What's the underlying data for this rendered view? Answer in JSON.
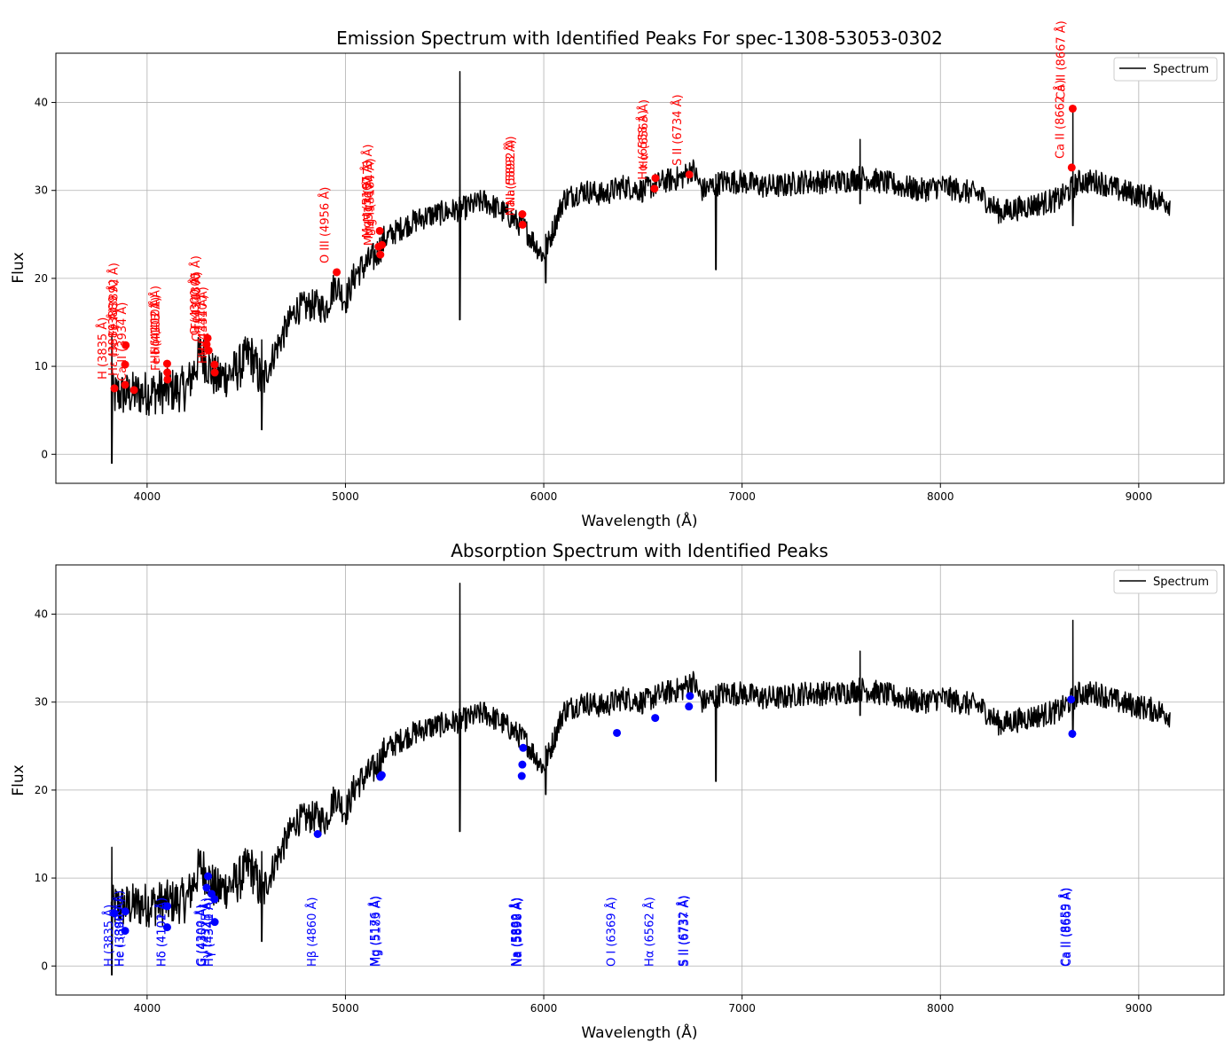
{
  "chart_data": [
    {
      "type": "line",
      "title": "Emission Spectrum with Identified Peaks For spec-1308-53053-0302",
      "xlabel": "Wavelength (Å)",
      "ylabel": "Flux",
      "xlim": [
        3540,
        9430
      ],
      "ylim": [
        -3.3,
        45.6
      ],
      "xticks": [
        4000,
        5000,
        6000,
        7000,
        8000,
        9000
      ],
      "yticks": [
        0,
        10,
        20,
        30,
        40
      ],
      "grid": true,
      "legend": {
        "position": "top-right",
        "label": "Spectrum"
      },
      "colors": {
        "line": "#000000",
        "markers": "#ff0000"
      },
      "spectrum_anchors": [
        [
          3820,
          6.5
        ],
        [
          3850,
          6.8
        ],
        [
          3900,
          6.8
        ],
        [
          4000,
          7.0
        ],
        [
          4100,
          7.2
        ],
        [
          4200,
          7.5
        ],
        [
          4270,
          11.5
        ],
        [
          4350,
          8.5
        ],
        [
          4450,
          9.5
        ],
        [
          4520,
          11.5
        ],
        [
          4580,
          8.0
        ],
        [
          4650,
          12.0
        ],
        [
          4750,
          16.5
        ],
        [
          4850,
          17.0
        ],
        [
          4900,
          16.5
        ],
        [
          4950,
          19.5
        ],
        [
          5000,
          17.5
        ],
        [
          5050,
          20.5
        ],
        [
          5150,
          22.5
        ],
        [
          5200,
          24.5
        ],
        [
          5300,
          26.0
        ],
        [
          5400,
          27.0
        ],
        [
          5500,
          27.5
        ],
        [
          5600,
          28.0
        ],
        [
          5700,
          28.8
        ],
        [
          5800,
          27.5
        ],
        [
          5900,
          25.8
        ],
        [
          6000,
          22.5
        ],
        [
          6100,
          29.0
        ],
        [
          6200,
          30.0
        ],
        [
          6300,
          29.5
        ],
        [
          6400,
          30.5
        ],
        [
          6500,
          30.0
        ],
        [
          6600,
          31.0
        ],
        [
          6700,
          31.5
        ],
        [
          6750,
          32.5
        ],
        [
          6800,
          30.0
        ],
        [
          6900,
          31.0
        ],
        [
          7000,
          31.0
        ],
        [
          7100,
          30.5
        ],
        [
          7200,
          30.5
        ],
        [
          7300,
          31.0
        ],
        [
          7400,
          31.0
        ],
        [
          7500,
          31.0
        ],
        [
          7600,
          31.5
        ],
        [
          7700,
          31.0
        ],
        [
          7800,
          30.5
        ],
        [
          7900,
          30.0
        ],
        [
          8000,
          30.5
        ],
        [
          8100,
          30.0
        ],
        [
          8200,
          29.5
        ],
        [
          8300,
          27.5
        ],
        [
          8400,
          28.0
        ],
        [
          8500,
          28.5
        ],
        [
          8600,
          29.0
        ],
        [
          8700,
          31.0
        ],
        [
          8800,
          31.0
        ],
        [
          8900,
          30.0
        ],
        [
          9000,
          29.5
        ],
        [
          9100,
          29.0
        ],
        [
          9160,
          28.5
        ]
      ],
      "spectrum_features": [
        {
          "x": 5577,
          "peak": 43.5,
          "dip": 15.3
        },
        {
          "x": 6010,
          "peak": 25.0,
          "dip": 19.5
        },
        {
          "x": 6868,
          "peak": 27.0,
          "dip": 21.0
        },
        {
          "x": 3822,
          "peak": 13.5,
          "dip": -1.0
        },
        {
          "x": 4578,
          "peak": 13.0,
          "dip": 2.8
        },
        {
          "x": 7595,
          "peak": 35.8,
          "dip": 28.5
        },
        {
          "x": 8668,
          "peak": 39.3,
          "dip": 26.0
        }
      ],
      "points": [
        {
          "x": 3835,
          "y": 7.5,
          "label": "H (3835 Å)"
        },
        {
          "x": 3889,
          "y": 10.2,
          "label": "He I (3889 Å)"
        },
        {
          "x": 3889,
          "y": 7.9,
          "label": "Hε (3889 Å)"
        },
        {
          "x": 3934,
          "y": 7.3,
          "label": "Ca II (3934 Å)"
        },
        {
          "x": 3892,
          "y": 12.4,
          "label": "Fe I (3892 Å)"
        },
        {
          "x": 4101,
          "y": 10.3,
          "label": "Hδ (4101 Å)"
        },
        {
          "x": 4103,
          "y": 8.5,
          "label": "Fe I (4103 Å)"
        },
        {
          "x": 4102,
          "y": 9.3,
          "label": "Hδ (4102 Å)"
        },
        {
          "x": 4300,
          "y": 12.5,
          "label": "G (4300 Å)"
        },
        {
          "x": 4305,
          "y": 13.2,
          "label": "Fe I (4305 Å)"
        },
        {
          "x": 4310,
          "y": 11.8,
          "label": "CH (4310 Å)"
        },
        {
          "x": 4340,
          "y": 10.2,
          "label": "Hγ (4340 Å)"
        },
        {
          "x": 4341,
          "y": 9.3,
          "label": "Hγ (4341 Å)"
        },
        {
          "x": 4956,
          "y": 20.7,
          "label": "O III (4956 Å)"
        },
        {
          "x": 5167,
          "y": 23.6,
          "label": "Mg I (5167 Å)"
        },
        {
          "x": 5173,
          "y": 25.4,
          "label": "Mg I (5173 Å)"
        },
        {
          "x": 5176,
          "y": 22.7,
          "label": "Mg (5176 Å)"
        },
        {
          "x": 5184,
          "y": 23.8,
          "label": "Mg I (5184 Å)"
        },
        {
          "x": 5892,
          "y": 27.3,
          "label": "Na (5892 Å)"
        },
        {
          "x": 5893,
          "y": 26.1,
          "label": "Na I (5893 Å)"
        },
        {
          "x": 6558,
          "y": 30.2,
          "label": "Hα (6558 Å)"
        },
        {
          "x": 6563,
          "y": 31.4,
          "label": "Hα (6563 Å)"
        },
        {
          "x": 6734,
          "y": 31.8,
          "label": "S II (6734 Å)"
        },
        {
          "x": 8662,
          "y": 32.6,
          "label": "Ca II (8662 Å)"
        },
        {
          "x": 8667,
          "y": 39.3,
          "label": "Ca II (8667 Å)"
        }
      ]
    },
    {
      "type": "line",
      "title": "Absorption Spectrum with Identified Peaks",
      "xlabel": "Wavelength (Å)",
      "ylabel": "Flux",
      "xlim": [
        3540,
        9430
      ],
      "ylim": [
        -3.3,
        45.6
      ],
      "xticks": [
        4000,
        5000,
        6000,
        7000,
        8000,
        9000
      ],
      "yticks": [
        0,
        10,
        20,
        30,
        40
      ],
      "grid": true,
      "legend": {
        "position": "top-right",
        "label": "Spectrum"
      },
      "colors": {
        "line": "#000000",
        "markers": "#0000ff"
      },
      "points": [
        {
          "x": 3835,
          "y": 6.0,
          "label": "H (3835 Å)"
        },
        {
          "x": 3889,
          "y": 4.0,
          "label": "He I (3889 Å)"
        },
        {
          "x": 3890,
          "y": 6.2,
          "label": "Hε (3890 Å)"
        },
        {
          "x": 4101,
          "y": 4.4,
          "label": "Hδ (4101 Å)"
        },
        {
          "x": 4102,
          "y": 6.8,
          "label": "Hδ (4102 Å)"
        },
        {
          "x": 4300,
          "y": 8.9,
          "label": "G (4300 Å)"
        },
        {
          "x": 4307,
          "y": 10.2,
          "label": "G (4307 Å)"
        },
        {
          "x": 4325,
          "y": 8.2,
          "label": "Hγ (4325 Å)"
        },
        {
          "x": 4340,
          "y": 7.6,
          "label": "Hγ (4340 Å)"
        },
        {
          "x": 4341,
          "y": 5.0,
          "label": "Hγ (4341 Å)"
        },
        {
          "x": 4860,
          "y": 15.0,
          "label": "Hβ (4860 Å)"
        },
        {
          "x": 5176,
          "y": 21.5,
          "label": "Mg (5176 Å)"
        },
        {
          "x": 5183,
          "y": 21.7,
          "label": "Mg (5183 Å)"
        },
        {
          "x": 5889,
          "y": 21.6,
          "label": "Na (5889 Å)"
        },
        {
          "x": 5892,
          "y": 22.9,
          "label": "Na (5892 Å)"
        },
        {
          "x": 5896,
          "y": 24.8,
          "label": "Na (5896 Å)"
        },
        {
          "x": 6369,
          "y": 26.5,
          "label": "O I (6369 Å)"
        },
        {
          "x": 6562,
          "y": 28.2,
          "label": "Hα (6562 Å)"
        },
        {
          "x": 6732,
          "y": 29.5,
          "label": "S II (6732 Å)"
        },
        {
          "x": 6737,
          "y": 30.7,
          "label": "S II (6737 Å)"
        },
        {
          "x": 8659,
          "y": 30.3,
          "label": "Ca II (8659 Å)"
        },
        {
          "x": 8665,
          "y": 26.4,
          "label": "Ca II (8665 Å)"
        }
      ]
    }
  ]
}
